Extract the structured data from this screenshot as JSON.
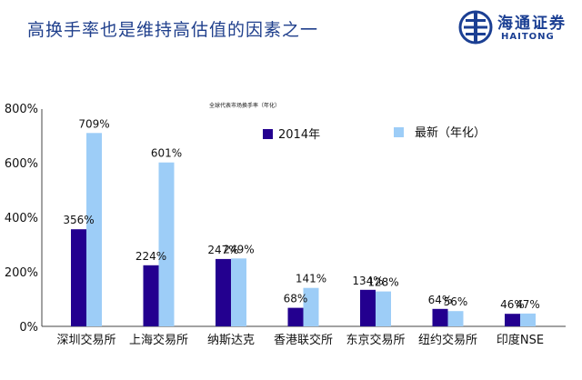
{
  "header": {
    "title": "高换手率也是维持高估值的因素之一",
    "logo": {
      "name_cn": "海通证券",
      "name_en": "HAITONG",
      "icon": "haitong-logo-icon"
    }
  },
  "chart_data": {
    "type": "bar",
    "title": "全球代表市场换手率（年化）",
    "categories": [
      "深圳交易所",
      "上海交易所",
      "纳斯达克",
      "香港联交所",
      "东京交易所",
      "纽约交易所",
      "印度NSE"
    ],
    "series": [
      {
        "name": "2014年",
        "color": "#23008f",
        "values": [
          356,
          224,
          247,
          68,
          134,
          64,
          46
        ],
        "labels": [
          "356%",
          "224%",
          "247%",
          "68%",
          "134%",
          "64%",
          "46%"
        ]
      },
      {
        "name": "最新（年化）",
        "color": "#9dcdf7",
        "values": [
          709,
          601,
          249,
          141,
          128,
          56,
          47
        ],
        "labels": [
          "709%",
          "601%",
          "249%",
          "141%",
          "128%",
          "56%",
          "47%"
        ]
      }
    ],
    "yticks": [
      "0%",
      "200%",
      "400%",
      "600%",
      "800%"
    ],
    "ylim": [
      0,
      800
    ],
    "grid": false,
    "legend_position": "top-right"
  }
}
